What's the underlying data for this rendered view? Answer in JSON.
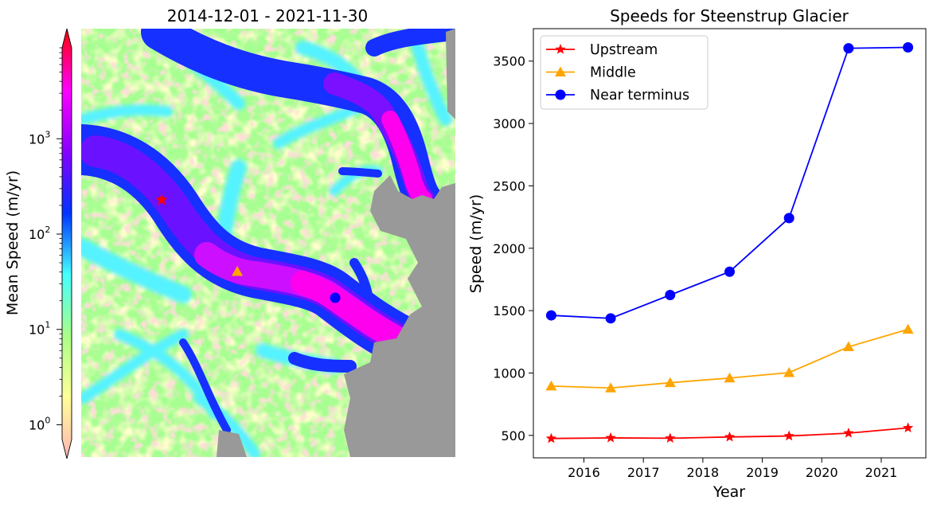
{
  "map_panel": {
    "title": "2014-12-01 - 2021-11-30",
    "colorbar": {
      "label": "Mean Speed (m/yr)",
      "scale": "log",
      "range": [
        0.7,
        9000
      ],
      "ticks": [
        {
          "value": 1,
          "base": "10",
          "exp": "0"
        },
        {
          "value": 10,
          "base": "10",
          "exp": "1"
        },
        {
          "value": 100,
          "base": "10",
          "exp": "2"
        },
        {
          "value": 1000,
          "base": "10",
          "exp": "3"
        }
      ],
      "extend": "both",
      "colormap": [
        "#ffb4b4",
        "#ffff99",
        "#aaff88",
        "#44ffff",
        "#0033ff",
        "#8800ff",
        "#ff00ff",
        "#ff0000"
      ]
    },
    "markers": [
      {
        "name": "Upstream",
        "shape": "star",
        "color": "#ff0000"
      },
      {
        "name": "Middle",
        "shape": "triangle",
        "color": "#ffa500"
      },
      {
        "name": "Near terminus",
        "shape": "circle",
        "color": "#0000ff"
      }
    ],
    "land_mask_color": "#999999"
  },
  "chart_data": {
    "type": "line",
    "title": "Speeds for Steenstrup Glacier",
    "xlabel": "Year",
    "ylabel": "Speed (m/yr)",
    "xlim": [
      2015.15,
      2021.75
    ],
    "ylim": [
      320,
      3760
    ],
    "xticks": [
      2016,
      2017,
      2018,
      2019,
      2020,
      2021
    ],
    "yticks": [
      500,
      1000,
      1500,
      2000,
      2500,
      3000,
      3500
    ],
    "legend_position": "top-left",
    "grid": false,
    "x": [
      2015.45,
      2016.45,
      2017.45,
      2018.45,
      2019.45,
      2020.45,
      2021.45
    ],
    "series": [
      {
        "name": "Upstream",
        "marker": "star",
        "color": "#ff0000",
        "values": [
          475,
          480,
          477,
          487,
          495,
          518,
          560
        ]
      },
      {
        "name": "Middle",
        "marker": "triangle",
        "color": "#ffa500",
        "values": [
          895,
          880,
          922,
          960,
          1003,
          1210,
          1350
        ]
      },
      {
        "name": "Near terminus",
        "marker": "circle",
        "color": "#0000ff",
        "values": [
          1462,
          1438,
          1625,
          1812,
          2242,
          3603,
          3610
        ]
      }
    ]
  }
}
